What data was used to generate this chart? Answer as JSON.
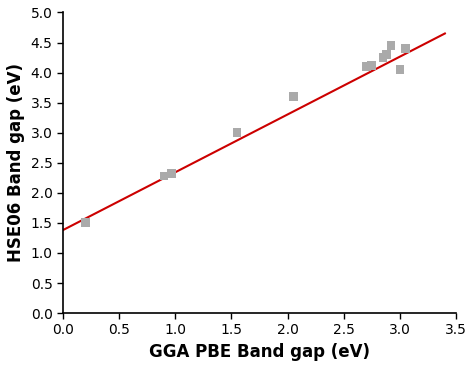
{
  "scatter_x": [
    0.2,
    0.9,
    0.97,
    1.55,
    2.05,
    2.7,
    2.75,
    2.85,
    2.88,
    2.92,
    3.0,
    3.05
  ],
  "scatter_y": [
    1.5,
    2.28,
    2.32,
    3.0,
    3.6,
    4.1,
    4.12,
    4.25,
    4.3,
    4.45,
    4.05,
    4.4
  ],
  "line_x": [
    0.0,
    3.4
  ],
  "line_y": [
    1.38,
    4.65
  ],
  "marker_color": "#aaaaaa",
  "line_color": "#cc0000",
  "xlabel": "GGA PBE Band gap (eV)",
  "ylabel": "HSE06 Band gap (eV)",
  "xlim": [
    0.0,
    3.5
  ],
  "ylim": [
    0.0,
    5.0
  ],
  "xticks": [
    0.0,
    0.5,
    1.0,
    1.5,
    2.0,
    2.5,
    3.0,
    3.5
  ],
  "yticks": [
    0.0,
    0.5,
    1.0,
    1.5,
    2.0,
    2.5,
    3.0,
    3.5,
    4.0,
    4.5,
    5.0
  ],
  "marker_size": 40,
  "marker_style": "s",
  "line_width": 1.5,
  "xlabel_fontsize": 12,
  "ylabel_fontsize": 12,
  "tick_fontsize": 10,
  "xlabel_fontweight": "bold",
  "ylabel_fontweight": "bold"
}
